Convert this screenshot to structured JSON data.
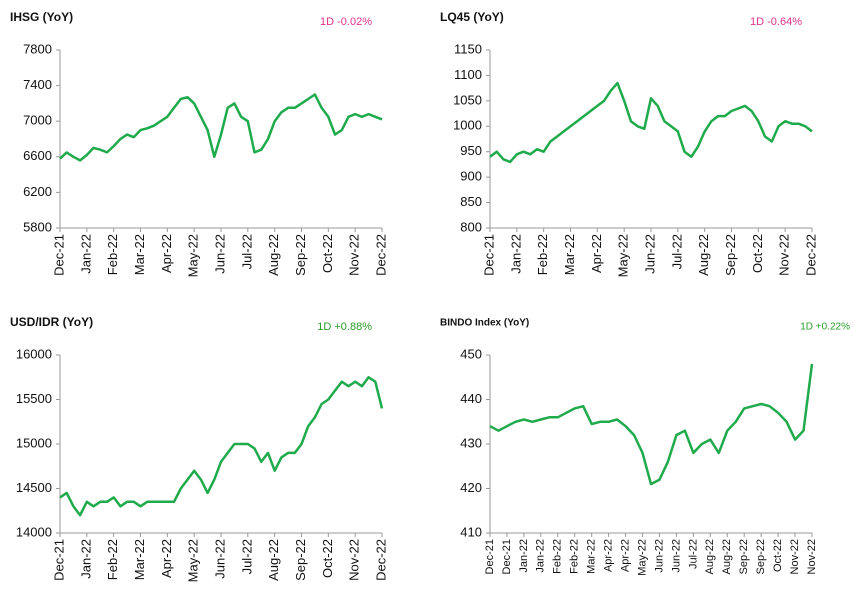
{
  "chart_data": [
    {
      "type": "line",
      "title": "IHSG (YoY)",
      "annotation": "1D -0.02%",
      "annotation_color": "#e0338a",
      "x": [
        0,
        0.25,
        0.5,
        0.75,
        1,
        1.25,
        1.5,
        1.75,
        2,
        2.25,
        2.5,
        2.75,
        3,
        3.25,
        3.5,
        3.75,
        4,
        4.25,
        4.5,
        4.75,
        5,
        5.25,
        5.5,
        5.75,
        6,
        6.25,
        6.5,
        6.75,
        7,
        7.25,
        7.5,
        7.75,
        8,
        8.25,
        8.5,
        8.75,
        9,
        9.25,
        9.5,
        9.75,
        10,
        10.25,
        10.5,
        10.75,
        11,
        11.25,
        11.5,
        11.75,
        12
      ],
      "series": [
        {
          "name": "IHSG",
          "color": "#1faa4b",
          "values": [
            6580,
            6650,
            6600,
            6560,
            6620,
            6700,
            6680,
            6650,
            6720,
            6800,
            6850,
            6820,
            6900,
            6920,
            6950,
            7000,
            7050,
            7150,
            7250,
            7270,
            7200,
            7050,
            6900,
            6600,
            6850,
            7150,
            7200,
            7050,
            7000,
            6650,
            6680,
            6800,
            7000,
            7100,
            7150,
            7150,
            7200,
            7250,
            7300,
            7150,
            7050,
            6850,
            6900,
            7050,
            7080,
            7050,
            7080,
            7050,
            7020
          ]
        }
      ],
      "xlim": [
        0,
        12
      ],
      "xticks": [
        {
          "value": 0,
          "label": "Dec-21"
        },
        {
          "value": 1,
          "label": "Jan-22"
        },
        {
          "value": 2,
          "label": "Feb-22"
        },
        {
          "value": 3,
          "label": "Mar-22"
        },
        {
          "value": 4,
          "label": "Apr-22"
        },
        {
          "value": 5,
          "label": "May-22"
        },
        {
          "value": 6,
          "label": "Jun-22"
        },
        {
          "value": 7,
          "label": "Jul-22"
        },
        {
          "value": 8,
          "label": "Aug-22"
        },
        {
          "value": 9,
          "label": "Sep-22"
        },
        {
          "value": 10,
          "label": "Oct-22"
        },
        {
          "value": 11,
          "label": "Nov-22"
        },
        {
          "value": 12,
          "label": "Dec-22"
        }
      ],
      "ylim": [
        5800,
        7800
      ],
      "yticks": [
        5800,
        6200,
        6600,
        7000,
        7400,
        7800
      ]
    },
    {
      "type": "line",
      "title": "LQ45 (YoY)",
      "annotation": "1D -0.64%",
      "annotation_color": "#e0338a",
      "x": [
        0,
        0.25,
        0.5,
        0.75,
        1,
        1.25,
        1.5,
        1.75,
        2,
        2.25,
        2.5,
        2.75,
        3,
        3.25,
        3.5,
        3.75,
        4,
        4.25,
        4.5,
        4.75,
        5,
        5.25,
        5.5,
        5.75,
        6,
        6.25,
        6.5,
        6.75,
        7,
        7.25,
        7.5,
        7.75,
        8,
        8.25,
        8.5,
        8.75,
        9,
        9.25,
        9.5,
        9.75,
        10,
        10.25,
        10.5,
        10.75,
        11,
        11.25,
        11.5,
        11.75,
        12
      ],
      "series": [
        {
          "name": "LQ45",
          "color": "#1faa4b",
          "values": [
            940,
            950,
            935,
            930,
            945,
            950,
            945,
            955,
            950,
            970,
            980,
            990,
            1000,
            1010,
            1020,
            1030,
            1040,
            1050,
            1070,
            1085,
            1050,
            1010,
            1000,
            995,
            1055,
            1040,
            1010,
            1000,
            990,
            950,
            940,
            960,
            990,
            1010,
            1020,
            1020,
            1030,
            1035,
            1040,
            1030,
            1010,
            980,
            970,
            1000,
            1010,
            1005,
            1005,
            1000,
            990
          ]
        }
      ],
      "xlim": [
        0,
        12
      ],
      "xticks": [
        {
          "value": 0,
          "label": "Dec-21"
        },
        {
          "value": 1,
          "label": "Jan-22"
        },
        {
          "value": 2,
          "label": "Feb-22"
        },
        {
          "value": 3,
          "label": "Mar-22"
        },
        {
          "value": 4,
          "label": "Apr-22"
        },
        {
          "value": 5,
          "label": "May-22"
        },
        {
          "value": 6,
          "label": "Jun-22"
        },
        {
          "value": 7,
          "label": "Jul-22"
        },
        {
          "value": 8,
          "label": "Aug-22"
        },
        {
          "value": 9,
          "label": "Sep-22"
        },
        {
          "value": 10,
          "label": "Oct-22"
        },
        {
          "value": 11,
          "label": "Nov-22"
        },
        {
          "value": 12,
          "label": "Dec-22"
        }
      ],
      "ylim": [
        800,
        1150
      ],
      "yticks": [
        800,
        850,
        900,
        950,
        1000,
        1050,
        1100,
        1150
      ]
    },
    {
      "type": "line",
      "title": "USD/IDR  (YoY)",
      "annotation": "1D +0.88%",
      "annotation_color": "#2a9d2a",
      "x": [
        0,
        0.25,
        0.5,
        0.75,
        1,
        1.25,
        1.5,
        1.75,
        2,
        2.25,
        2.5,
        2.75,
        3,
        3.25,
        3.5,
        3.75,
        4,
        4.25,
        4.5,
        4.75,
        5,
        5.25,
        5.5,
        5.75,
        6,
        6.25,
        6.5,
        6.75,
        7,
        7.25,
        7.5,
        7.75,
        8,
        8.25,
        8.5,
        8.75,
        9,
        9.25,
        9.5,
        9.75,
        10,
        10.25,
        10.5,
        10.75,
        11,
        11.25,
        11.5,
        11.75,
        12
      ],
      "series": [
        {
          "name": "USD/IDR",
          "color": "#1faa4b",
          "values": [
            14400,
            14450,
            14300,
            14200,
            14350,
            14300,
            14350,
            14350,
            14400,
            14300,
            14350,
            14350,
            14300,
            14350,
            14350,
            14350,
            14350,
            14350,
            14500,
            14600,
            14700,
            14600,
            14450,
            14600,
            14800,
            14900,
            15000,
            15000,
            15000,
            14950,
            14800,
            14900,
            14700,
            14850,
            14900,
            14900,
            15000,
            15200,
            15300,
            15450,
            15500,
            15600,
            15700,
            15650,
            15700,
            15650,
            15750,
            15700,
            15400
          ]
        }
      ],
      "xlim": [
        0,
        12
      ],
      "xticks": [
        {
          "value": 0,
          "label": "Dec-21"
        },
        {
          "value": 1,
          "label": "Jan-22"
        },
        {
          "value": 2,
          "label": "Feb-22"
        },
        {
          "value": 3,
          "label": "Mar-22"
        },
        {
          "value": 4,
          "label": "Apr-22"
        },
        {
          "value": 5,
          "label": "May-22"
        },
        {
          "value": 6,
          "label": "Jun-22"
        },
        {
          "value": 7,
          "label": "Jul-22"
        },
        {
          "value": 8,
          "label": "Aug-22"
        },
        {
          "value": 9,
          "label": "Sep-22"
        },
        {
          "value": 10,
          "label": "Oct-22"
        },
        {
          "value": 11,
          "label": "Nov-22"
        },
        {
          "value": 12,
          "label": "Dec-22"
        }
      ],
      "ylim": [
        14000,
        16000
      ],
      "yticks": [
        14000,
        14500,
        15000,
        15500,
        16000
      ]
    },
    {
      "type": "line",
      "title": "BINDO Index (YoY)",
      "annotation": "1D +0.22%",
      "annotation_color": "#2a9d2a",
      "x": [
        0,
        0.5,
        1,
        1.5,
        2,
        2.5,
        3,
        3.5,
        4,
        4.5,
        5,
        5.5,
        6,
        6.5,
        7,
        7.5,
        8,
        8.5,
        9,
        9.5,
        10,
        10.5,
        11,
        11.5,
        12,
        12.5,
        13,
        13.5,
        14,
        14.5,
        15,
        15.5,
        16,
        16.5,
        17,
        17.5,
        18,
        18.5,
        19
      ],
      "series": [
        {
          "name": "BINDO Index",
          "color": "#1faa4b",
          "values": [
            434,
            433,
            434,
            435,
            435.5,
            435,
            435.5,
            436,
            436,
            437,
            438,
            438.5,
            434.5,
            435,
            435,
            435.5,
            434,
            432,
            428,
            421,
            422,
            426,
            432,
            433,
            428,
            430,
            431,
            428,
            433,
            435,
            438,
            438.5,
            439,
            438.5,
            437,
            435,
            431,
            433,
            448
          ]
        }
      ],
      "xlim": [
        0,
        19
      ],
      "xticks": [
        {
          "value": 0,
          "label": "Dec-21"
        },
        {
          "value": 1,
          "label": "Dec-21"
        },
        {
          "value": 2,
          "label": "Jan-22"
        },
        {
          "value": 3,
          "label": "Jan-22"
        },
        {
          "value": 4,
          "label": "Feb-22"
        },
        {
          "value": 5,
          "label": "Feb-22"
        },
        {
          "value": 6,
          "label": "Mar-22"
        },
        {
          "value": 7,
          "label": "Apr-22"
        },
        {
          "value": 8,
          "label": "Apr-22"
        },
        {
          "value": 9,
          "label": "May-22"
        },
        {
          "value": 10,
          "label": "Jun-22"
        },
        {
          "value": 11,
          "label": "Jun-22"
        },
        {
          "value": 12,
          "label": "Jul-22"
        },
        {
          "value": 13,
          "label": "Aug-22"
        },
        {
          "value": 14,
          "label": "Aug-22"
        },
        {
          "value": 15,
          "label": "Sep-22"
        },
        {
          "value": 16,
          "label": "Sep-22"
        },
        {
          "value": 17,
          "label": "Oct-22"
        },
        {
          "value": 18,
          "label": "Nov-22"
        },
        {
          "value": 19,
          "label": "Nov-22"
        }
      ],
      "ylim": [
        410,
        450
      ],
      "yticks": [
        410,
        420,
        430,
        440,
        450
      ]
    }
  ]
}
